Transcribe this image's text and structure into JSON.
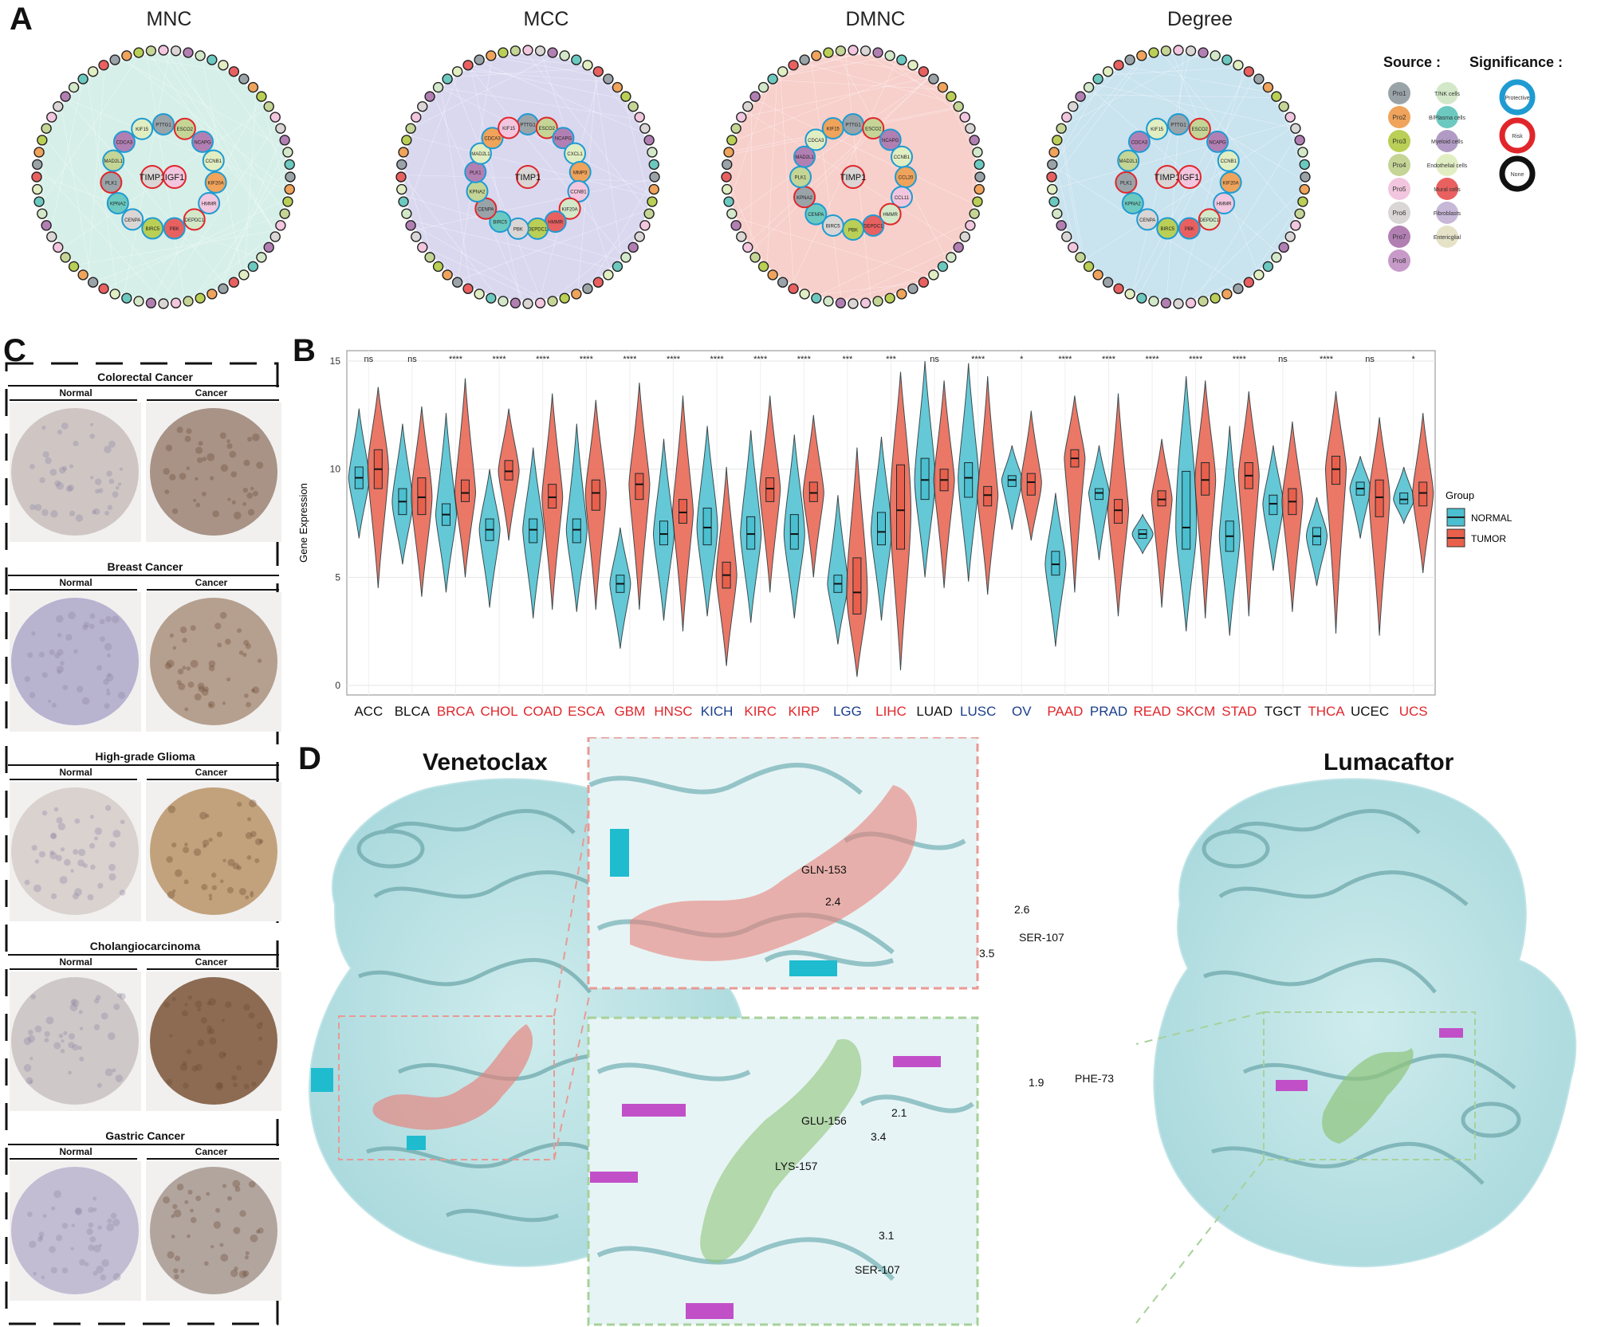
{
  "panels": {
    "a": "A",
    "b": "B",
    "c": "C",
    "d": "D"
  },
  "networks": [
    {
      "title": "MNC",
      "bg": "#d6efe9",
      "center": [
        "TIMP1",
        "IGF1"
      ]
    },
    {
      "title": "MCC",
      "bg": "#d9d8ef",
      "center": [
        "TIMP1"
      ]
    },
    {
      "title": "DMNC",
      "bg": "#f7cfcb",
      "center": [
        "TIMP1"
      ]
    },
    {
      "title": "Degree",
      "bg": "#c9e3ef",
      "center": [
        "TIMP1",
        "IGF1"
      ]
    }
  ],
  "network_labels": {
    "MNC": [
      "PTTG1",
      "ESCO2",
      "NCAPG",
      "CCNB1",
      "KIF20A",
      "HMMR",
      "DEPDC1",
      "PBK",
      "BIRC5",
      "CENPA",
      "KPNA2",
      "PLK1",
      "MAD2L1",
      "CDCA3",
      "KIF15"
    ],
    "MCC": [
      "PTTG1",
      "ESCO2",
      "NCAPG",
      "CXCL1",
      "MMP3",
      "CCNB1",
      "KIF20A",
      "HMMR",
      "DEPDC1",
      "PBK",
      "BIRC5",
      "CENPA",
      "KPNA2",
      "PLK1",
      "MAD2L1",
      "CDCA3",
      "KIF15"
    ],
    "DMNC": [
      "PTTG1",
      "ESCO2",
      "NCAPG",
      "CCNB1",
      "CCL20",
      "CCL11",
      "HMMR",
      "DEPDC1",
      "PBK",
      "BIRC5",
      "CENPA",
      "KPNA2",
      "PLK1",
      "MAD2L1",
      "CDCA3",
      "KIF15"
    ],
    "Degree": [
      "PTTG1",
      "ESCO2",
      "NCAPG",
      "CCNB1",
      "KIF20A",
      "HMMR",
      "DEPDC1",
      "PBK",
      "BIRC5",
      "CENPA",
      "KPNA2",
      "PLK1",
      "MAD2L1",
      "CDCA3",
      "KIF15"
    ]
  },
  "legend": {
    "source_title": "Source :",
    "significance_title": "Significance :",
    "sources": [
      {
        "label": "Pro1",
        "color": "#9aa3a8"
      },
      {
        "label": "Pro2",
        "color": "#f0a35a"
      },
      {
        "label": "Pro3",
        "color": "#b9cf55"
      },
      {
        "label": "Pro4",
        "color": "#c4d596"
      },
      {
        "label": "Pro5",
        "color": "#f2c6de"
      },
      {
        "label": "Pro6",
        "color": "#dad6d6"
      },
      {
        "label": "Pro7",
        "color": "#b27fb3"
      },
      {
        "label": "Pro8",
        "color": "#c79ac9"
      }
    ],
    "cells": [
      {
        "label": "T/NK cells",
        "color": "#d3e8c8"
      },
      {
        "label": "B/Plasma cells",
        "color": "#6cc9c0"
      },
      {
        "label": "Myeloid cells",
        "color": "#b19bc4"
      },
      {
        "label": "Endothelial cells",
        "color": "#e1eec2"
      },
      {
        "label": "Mural cells",
        "color": "#e96060"
      },
      {
        "label": "Fibroblasts",
        "color": "#c7b8d8"
      },
      {
        "label": "Entericglial",
        "color": "#e6e2c8"
      }
    ],
    "significance": [
      {
        "label": "Protective",
        "color": "#1f9bd2"
      },
      {
        "label": "Risk",
        "color": "#e0262b"
      },
      {
        "label": "None",
        "color": "#111111"
      }
    ]
  },
  "ihc": {
    "normal_label": "Normal",
    "cancer_label": "Cancer",
    "rows": [
      {
        "title": "Colorectal Cancer",
        "normal": "#cfc6c4",
        "cancer": "#a89386"
      },
      {
        "title": "Breast Cancer",
        "normal": "#b8b3cf",
        "cancer": "#b59f8e"
      },
      {
        "title": "High-grade Glioma",
        "normal": "#d9d2cf",
        "cancer": "#c2a27c"
      },
      {
        "title": "Cholangiocarcinoma",
        "normal": "#cfc8c8",
        "cancer": "#8c6b52"
      },
      {
        "title": "Gastric Cancer",
        "normal": "#c3bdd3",
        "cancer": "#b2a59e"
      }
    ]
  },
  "chart_data": {
    "type": "violin",
    "ylabel": "Gene Expression",
    "ylim": [
      0,
      15
    ],
    "yticks": [
      0,
      5,
      10,
      15
    ],
    "legend": {
      "title": "Group",
      "items": [
        "NORMAL",
        "TUMOR"
      ]
    },
    "colors": {
      "NORMAL": "#4bbfcf",
      "TUMOR": "#e8604c"
    },
    "categories": [
      "ACC",
      "BLCA",
      "BRCA",
      "CHOL",
      "COAD",
      "ESCA",
      "GBM",
      "HNSC",
      "KICH",
      "KIRC",
      "KIRP",
      "LGG",
      "LIHC",
      "LUAD",
      "LUSC",
      "OV",
      "PAAD",
      "PRAD",
      "READ",
      "SKCM",
      "STAD",
      "TGCT",
      "THCA",
      "UCEC",
      "UCS"
    ],
    "category_colors": [
      "#111111",
      "#111111",
      "#e0262b",
      "#e0262b",
      "#e0262b",
      "#e0262b",
      "#e0262b",
      "#e0262b",
      "#1b3f8b",
      "#e0262b",
      "#e0262b",
      "#1b3f8b",
      "#e0262b",
      "#111111",
      "#1b3f8b",
      "#1b3f8b",
      "#e0262b",
      "#1b3f8b",
      "#e0262b",
      "#e0262b",
      "#e0262b",
      "#111111",
      "#e0262b",
      "#111111",
      "#e0262b"
    ],
    "significance": [
      "ns",
      "ns",
      "****",
      "****",
      "****",
      "****",
      "****",
      "****",
      "****",
      "****",
      "****",
      "***",
      "***",
      "ns",
      "****",
      "*",
      "****",
      "****",
      "****",
      "****",
      "****",
      "ns",
      "****",
      "ns",
      "*"
    ],
    "series": [
      {
        "name": "NORMAL",
        "median": [
          9.6,
          8.5,
          7.9,
          7.2,
          7.2,
          7.2,
          4.7,
          7.0,
          7.3,
          7.0,
          7.0,
          4.7,
          7.1,
          9.5,
          9.6,
          9.5,
          5.6,
          8.9,
          7.0,
          7.3,
          6.9,
          8.4,
          6.9,
          9.1,
          8.6
        ],
        "q1": [
          9.1,
          7.9,
          7.4,
          6.7,
          6.6,
          6.6,
          4.3,
          6.5,
          6.5,
          6.3,
          6.3,
          4.3,
          6.5,
          8.6,
          8.7,
          9.2,
          5.1,
          8.6,
          6.8,
          6.3,
          6.2,
          7.9,
          6.5,
          8.8,
          8.4
        ],
        "q3": [
          10.1,
          9.1,
          8.4,
          7.7,
          7.7,
          7.7,
          5.1,
          7.6,
          8.2,
          7.8,
          7.9,
          5.1,
          8.0,
          10.5,
          10.3,
          9.7,
          6.2,
          9.1,
          7.2,
          9.9,
          7.6,
          8.8,
          7.3,
          9.4,
          8.9
        ],
        "min": [
          6.8,
          5.6,
          4.3,
          3.6,
          3.1,
          3.4,
          1.7,
          3.0,
          3.2,
          2.9,
          3.1,
          1.9,
          3.0,
          5.0,
          4.8,
          7.2,
          1.8,
          5.8,
          6.1,
          2.5,
          2.3,
          5.3,
          4.6,
          6.8,
          7.5
        ],
        "max": [
          12.8,
          12.1,
          12.6,
          10.0,
          11.0,
          12.1,
          7.3,
          11.4,
          12.0,
          11.8,
          11.6,
          8.8,
          11.5,
          15.0,
          14.9,
          11.1,
          8.9,
          11.1,
          7.9,
          14.3,
          12.0,
          11.1,
          8.7,
          10.6,
          10.1
        ]
      },
      {
        "name": "TUMOR",
        "median": [
          10.0,
          8.7,
          8.9,
          9.9,
          8.7,
          8.9,
          9.3,
          8.0,
          5.1,
          9.1,
          8.9,
          4.3,
          8.1,
          9.5,
          8.8,
          9.4,
          10.5,
          8.1,
          8.6,
          9.5,
          9.7,
          8.5,
          10.0,
          8.7,
          8.9
        ],
        "q1": [
          9.1,
          7.9,
          8.5,
          9.5,
          8.2,
          8.1,
          8.6,
          7.5,
          4.5,
          8.5,
          8.5,
          3.3,
          6.3,
          9.0,
          8.3,
          8.8,
          10.1,
          7.5,
          8.3,
          8.8,
          9.1,
          7.9,
          9.3,
          7.8,
          8.3
        ],
        "q3": [
          10.9,
          9.6,
          9.5,
          10.4,
          9.3,
          9.5,
          9.8,
          8.6,
          5.7,
          9.6,
          9.4,
          5.9,
          10.2,
          10.0,
          9.2,
          9.8,
          10.9,
          8.6,
          9.0,
          10.3,
          10.3,
          9.1,
          10.6,
          9.5,
          9.4
        ],
        "min": [
          4.5,
          4.1,
          5.0,
          6.7,
          3.5,
          3.5,
          3.5,
          2.5,
          0.9,
          4.3,
          5.0,
          0.4,
          0.7,
          4.5,
          4.2,
          6.7,
          4.3,
          3.2,
          3.6,
          3.1,
          3.2,
          3.4,
          2.4,
          2.3,
          5.2
        ],
        "max": [
          13.8,
          12.9,
          14.2,
          12.8,
          13.5,
          13.2,
          14.0,
          13.4,
          10.1,
          13.4,
          12.5,
          11.0,
          14.5,
          14.1,
          14.3,
          12.7,
          13.4,
          13.5,
          11.4,
          14.1,
          13.6,
          12.2,
          13.6,
          12.4,
          12.6
        ]
      }
    ]
  },
  "docking": {
    "left_title": "Venetoclax",
    "right_title": "Lumacaftor",
    "top_residues": [
      "GLN-153",
      "SER-107"
    ],
    "top_distances": [
      "2.4",
      "2.6",
      "3.5"
    ],
    "bottom_residues": [
      "GLU-156",
      "LYS-157",
      "SER-107",
      "PHE-73"
    ],
    "bottom_distances": [
      "2.1",
      "3.4",
      "3.1",
      "1.9"
    ],
    "ligand_color_top": "#e8807a",
    "ligand_color_bottom": "#8fc47a",
    "residue_color_top": "#1fbcd0",
    "residue_color_bottom": "#c150c8"
  }
}
